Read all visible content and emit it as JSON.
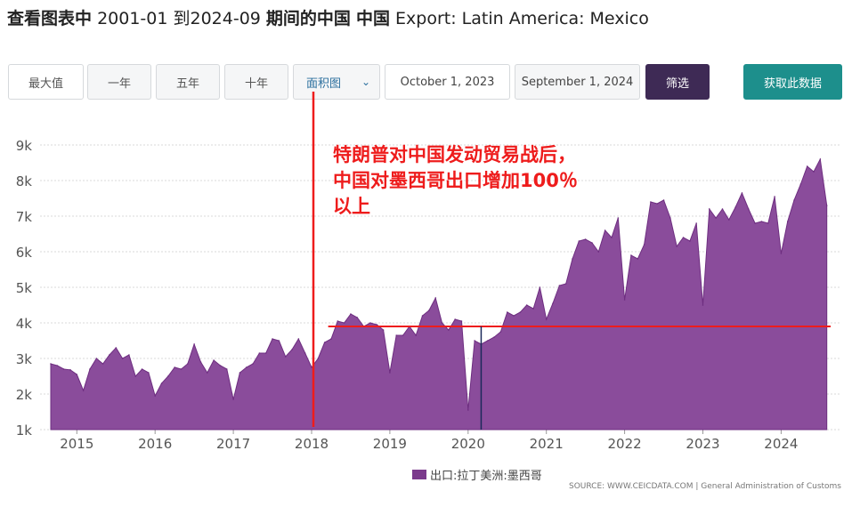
{
  "title": {
    "prefix": "查看图表中",
    "range": "2001-01 到2024-09",
    "middle": "期间的中国",
    "country": "中国",
    "series": "Export: Latin America: Mexico"
  },
  "controls": {
    "max_label": "最大值",
    "one_year_label": "一年",
    "five_year_label": "五年",
    "ten_year_label": "十年",
    "chart_type_label": "面积图",
    "start_date": "October 1, 2023",
    "end_date": "September 1, 2024",
    "filter_label": "筛选",
    "get_data_label": "获取此数据"
  },
  "annotation": {
    "line1": "特朗普对中国发动贸易战后，",
    "line2": "中国对墨西哥出口增加100％",
    "line3": "以上"
  },
  "legend": {
    "label": "出口:拉丁美洲:墨西哥"
  },
  "source": "SOURCE: WWW.CEICDATA.COM | General Administration of Customs",
  "colors": {
    "area_fill": "#8a4c9b",
    "area_line": "#6e2e80",
    "annotation": "#ee1c1c",
    "marker": "#1b2a5a"
  },
  "chart_data": {
    "type": "area",
    "x_start": "2014-09",
    "frequency": "monthly",
    "xlim": [
      "2014-09",
      "2024-09"
    ],
    "ylim": [
      1000,
      9000
    ],
    "y_ticks": [
      "1k",
      "2k",
      "3k",
      "4k",
      "5k",
      "6k",
      "7k",
      "8k",
      "9k"
    ],
    "x_ticks": [
      "2015",
      "2016",
      "2017",
      "2018",
      "2019",
      "2020",
      "2021",
      "2022",
      "2023",
      "2024"
    ],
    "grid": true,
    "values": [
      2850,
      2800,
      2700,
      2680,
      2550,
      2100,
      2700,
      3000,
      2850,
      3100,
      3300,
      3000,
      3100,
      2500,
      2700,
      2600,
      1950,
      2300,
      2500,
      2750,
      2700,
      2850,
      3400,
      2900,
      2600,
      2950,
      2800,
      2700,
      1850,
      2600,
      2750,
      2850,
      3150,
      3150,
      3550,
      3500,
      3050,
      3250,
      3550,
      3150,
      2750,
      3000,
      3450,
      3550,
      4050,
      4000,
      4250,
      4150,
      3900,
      4000,
      3950,
      3800,
      2600,
      3650,
      3650,
      3900,
      3650,
      4200,
      4350,
      4700,
      4000,
      3800,
      4100,
      4050,
      1550,
      3500,
      3400,
      3500,
      3600,
      3750,
      4300,
      4200,
      4300,
      4500,
      4400,
      5000,
      4100,
      4550,
      5050,
      5100,
      5800,
      6300,
      6350,
      6250,
      6000,
      6600,
      6400,
      6950,
      4650,
      5900,
      5800,
      6200,
      7400,
      7350,
      7450,
      6950,
      6150,
      6400,
      6300,
      6800,
      4500,
      7200,
      6950,
      7200,
      6900,
      7250,
      7650,
      7200,
      6800,
      6850,
      6800,
      7550,
      5950,
      6850,
      7450,
      7900,
      8400,
      8250,
      8600,
      7300
    ],
    "reference_line_y": 3900,
    "annotation_markers": [
      "2018-03",
      "2020-03"
    ]
  }
}
